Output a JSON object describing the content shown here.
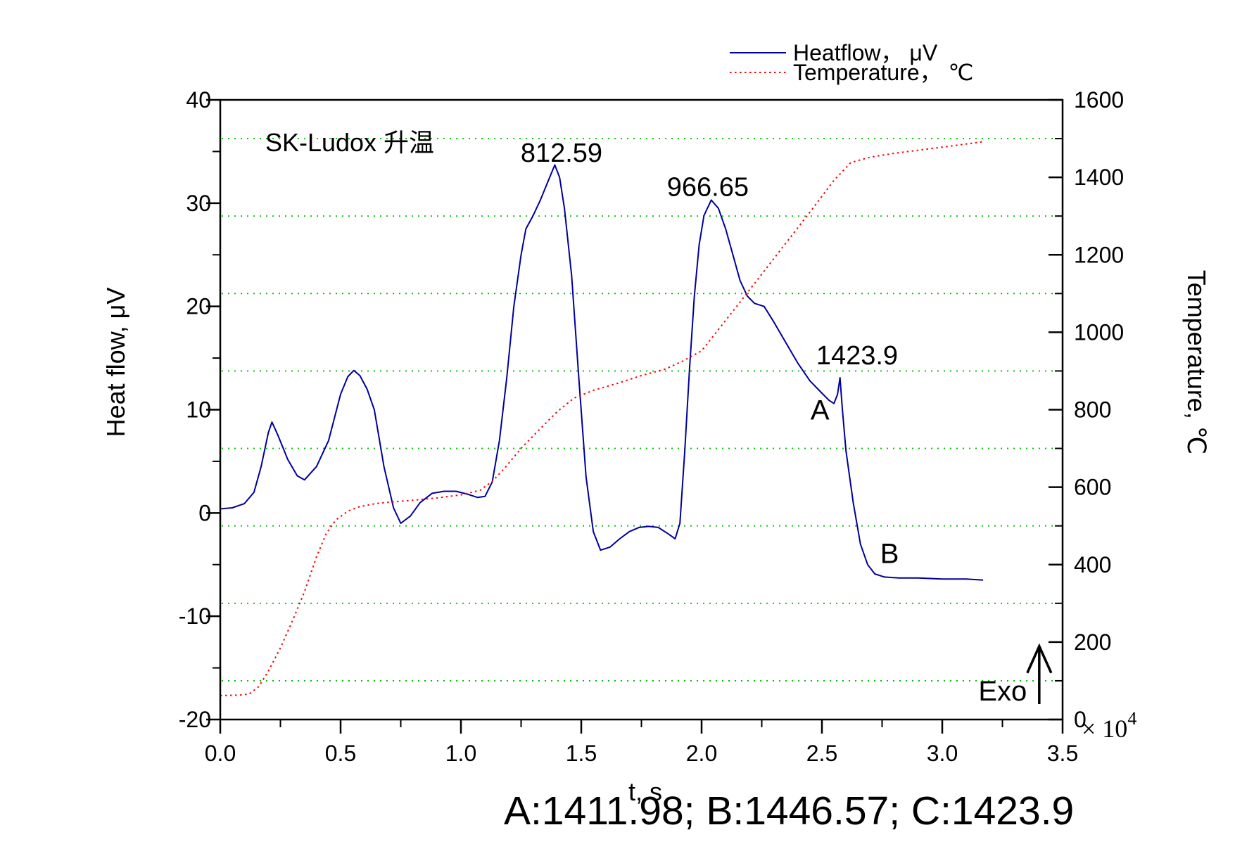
{
  "figure": {
    "background": "#ffffff"
  },
  "chart_data": {
    "type": "line",
    "sample_title": "SK-Ludox 升温",
    "xlabel": "t, s",
    "x_multiplier_base": "× 10",
    "x_multiplier_exp": "4",
    "ylabel_left": "Heat flow, μV",
    "ylabel_right": "Temperature, ℃",
    "xlim": [
      0,
      3.5
    ],
    "ylim_left": [
      -20,
      40
    ],
    "ylim_right": [
      0,
      1600
    ],
    "x_tick_values": [
      0,
      0.5,
      1.0,
      1.5,
      2.0,
      2.5,
      3.0,
      3.5
    ],
    "x_tick_labels": [
      "0.0",
      "0.5",
      "1.0",
      "1.5",
      "2.0",
      "2.5",
      "3.0",
      "3.5"
    ],
    "x_minor_step": 0.25,
    "yl_tick_values": [
      -20,
      -10,
      0,
      10,
      20,
      30,
      40
    ],
    "yl_tick_labels": [
      "-20",
      "-10",
      "0",
      "10",
      "20",
      "30",
      "40"
    ],
    "yl_minor_step": 5,
    "yr_tick_values": [
      0,
      200,
      400,
      600,
      800,
      1000,
      1200,
      1400,
      1600
    ],
    "yr_tick_labels": [
      "0",
      "200",
      "400",
      "600",
      "800",
      "1000",
      "1200",
      "1400",
      "1600"
    ],
    "yr_minor_step": 100,
    "grid": {
      "axis": "right",
      "values": [
        100,
        300,
        500,
        700,
        900,
        1100,
        1300,
        1500
      ],
      "color": "#00c000",
      "style": "dotted"
    },
    "legend": {
      "position": "top-right",
      "items": [
        {
          "label": "Heatflow， μV",
          "color": "#00009b",
          "style": "solid"
        },
        {
          "label": "Temperature， ℃",
          "color": "#ff0000",
          "style": "dotted"
        }
      ]
    },
    "series": [
      {
        "name": "Heatflow",
        "axis": "left",
        "color": "#00009b",
        "style": "solid",
        "points": [
          [
            0,
            0.4
          ],
          [
            0.05,
            0.5
          ],
          [
            0.1,
            0.9
          ],
          [
            0.14,
            2.0
          ],
          [
            0.17,
            4.5
          ],
          [
            0.2,
            7.8
          ],
          [
            0.215,
            8.8
          ],
          [
            0.24,
            7.5
          ],
          [
            0.28,
            5.2
          ],
          [
            0.32,
            3.6
          ],
          [
            0.35,
            3.2
          ],
          [
            0.4,
            4.5
          ],
          [
            0.45,
            7.0
          ],
          [
            0.5,
            11.5
          ],
          [
            0.53,
            13.2
          ],
          [
            0.555,
            13.8
          ],
          [
            0.58,
            13.3
          ],
          [
            0.61,
            12.0
          ],
          [
            0.64,
            10.0
          ],
          [
            0.68,
            4.5
          ],
          [
            0.72,
            0.5
          ],
          [
            0.75,
            -1.0
          ],
          [
            0.79,
            -0.3
          ],
          [
            0.83,
            1.0
          ],
          [
            0.88,
            1.9
          ],
          [
            0.93,
            2.1
          ],
          [
            0.98,
            2.1
          ],
          [
            1.03,
            1.8
          ],
          [
            1.07,
            1.5
          ],
          [
            1.1,
            1.6
          ],
          [
            1.13,
            3.0
          ],
          [
            1.16,
            7.0
          ],
          [
            1.19,
            13.0
          ],
          [
            1.22,
            20.0
          ],
          [
            1.25,
            25.0
          ],
          [
            1.27,
            27.5
          ],
          [
            1.3,
            28.8
          ],
          [
            1.33,
            30.3
          ],
          [
            1.36,
            32.0
          ],
          [
            1.39,
            33.7
          ],
          [
            1.41,
            32.5
          ],
          [
            1.43,
            29.5
          ],
          [
            1.46,
            23.0
          ],
          [
            1.49,
            13.0
          ],
          [
            1.52,
            3.5
          ],
          [
            1.55,
            -1.8
          ],
          [
            1.58,
            -3.6
          ],
          [
            1.62,
            -3.3
          ],
          [
            1.66,
            -2.5
          ],
          [
            1.7,
            -1.8
          ],
          [
            1.74,
            -1.4
          ],
          [
            1.78,
            -1.3
          ],
          [
            1.82,
            -1.4
          ],
          [
            1.86,
            -2.0
          ],
          [
            1.89,
            -2.5
          ],
          [
            1.91,
            -1.0
          ],
          [
            1.93,
            6.0
          ],
          [
            1.95,
            14.0
          ],
          [
            1.97,
            21.0
          ],
          [
            1.99,
            26.0
          ],
          [
            2.01,
            28.8
          ],
          [
            2.04,
            30.3
          ],
          [
            2.07,
            29.5
          ],
          [
            2.1,
            27.5
          ],
          [
            2.13,
            25.0
          ],
          [
            2.16,
            22.5
          ],
          [
            2.19,
            21.0
          ],
          [
            2.22,
            20.3
          ],
          [
            2.26,
            20.0
          ],
          [
            2.3,
            18.5
          ],
          [
            2.35,
            16.5
          ],
          [
            2.4,
            14.5
          ],
          [
            2.45,
            12.8
          ],
          [
            2.5,
            11.6
          ],
          [
            2.53,
            10.9
          ],
          [
            2.55,
            10.6
          ],
          [
            2.565,
            11.5
          ],
          [
            2.575,
            13.1
          ],
          [
            2.585,
            10.0
          ],
          [
            2.6,
            6.0
          ],
          [
            2.63,
            1.0
          ],
          [
            2.66,
            -3.0
          ],
          [
            2.69,
            -5.0
          ],
          [
            2.72,
            -5.9
          ],
          [
            2.76,
            -6.2
          ],
          [
            2.82,
            -6.3
          ],
          [
            2.9,
            -6.3
          ],
          [
            3.0,
            -6.4
          ],
          [
            3.1,
            -6.4
          ],
          [
            3.17,
            -6.5
          ]
        ]
      },
      {
        "name": "Temperature",
        "axis": "right",
        "color": "#ff0000",
        "style": "dotted",
        "points": [
          [
            0,
            62
          ],
          [
            0.08,
            63
          ],
          [
            0.12,
            66
          ],
          [
            0.16,
            85
          ],
          [
            0.2,
            125
          ],
          [
            0.25,
            185
          ],
          [
            0.3,
            255
          ],
          [
            0.35,
            330
          ],
          [
            0.4,
            420
          ],
          [
            0.44,
            480
          ],
          [
            0.48,
            515
          ],
          [
            0.53,
            538
          ],
          [
            0.58,
            550
          ],
          [
            0.65,
            558
          ],
          [
            0.72,
            562
          ],
          [
            0.8,
            566
          ],
          [
            0.9,
            572
          ],
          [
            1.0,
            580
          ],
          [
            1.08,
            592
          ],
          [
            1.13,
            615
          ],
          [
            1.18,
            648
          ],
          [
            1.25,
            700
          ],
          [
            1.32,
            745
          ],
          [
            1.4,
            795
          ],
          [
            1.47,
            830
          ],
          [
            1.55,
            850
          ],
          [
            1.65,
            868
          ],
          [
            1.75,
            888
          ],
          [
            1.85,
            905
          ],
          [
            1.92,
            925
          ],
          [
            2.0,
            952
          ],
          [
            2.08,
            1015
          ],
          [
            2.16,
            1078
          ],
          [
            2.25,
            1150
          ],
          [
            2.35,
            1230
          ],
          [
            2.45,
            1310
          ],
          [
            2.55,
            1392
          ],
          [
            2.62,
            1438
          ],
          [
            2.7,
            1452
          ],
          [
            2.8,
            1462
          ],
          [
            2.95,
            1474
          ],
          [
            3.05,
            1482
          ],
          [
            3.17,
            1492
          ]
        ]
      }
    ],
    "annotations": [
      {
        "name": "peak-label-812",
        "text": "812.59",
        "t": 1.418,
        "value": 34.9,
        "size": 38,
        "anchor": "middle"
      },
      {
        "name": "peak-label-966",
        "text": "966.65",
        "t": 2.026,
        "value": 31.6,
        "size": 38,
        "anchor": "middle"
      },
      {
        "name": "peak-label-1423",
        "text": "1423.9",
        "t": 2.646,
        "value": 15.3,
        "size": 38,
        "anchor": "middle"
      },
      {
        "name": "point-label-A",
        "text": "A",
        "t": 2.492,
        "value": 10.0,
        "size": 40,
        "anchor": "middle"
      },
      {
        "name": "point-label-B",
        "text": "B",
        "t": 2.781,
        "value": -3.9,
        "size": 40,
        "anchor": "middle"
      },
      {
        "name": "sample-title",
        "text": "SK-Ludox 升温",
        "t": 0.187,
        "value": 35.9,
        "size": 36,
        "anchor": "start"
      },
      {
        "name": "exo-label",
        "text": "Exo",
        "t": 3.251,
        "value": -17.2,
        "size": 40,
        "anchor": "middle"
      }
    ],
    "exo_arrow": {
      "t": 3.403,
      "from_value": -18.5,
      "to_value": -12.9
    },
    "bottom_caption": "A:1411.98; B:1446.57; C:1423.9"
  }
}
